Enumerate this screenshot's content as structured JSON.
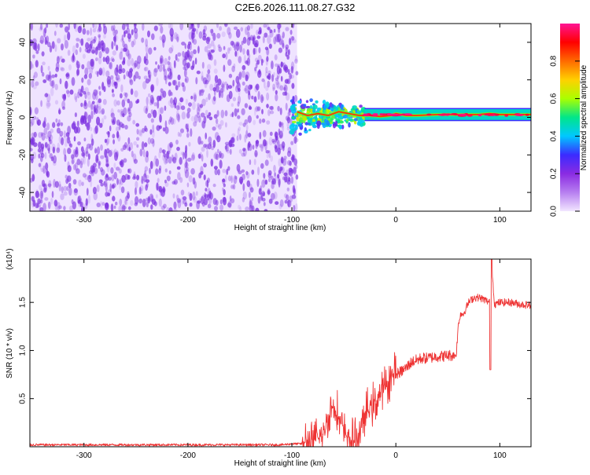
{
  "title": "C2E6.2026.111.08.27.G32",
  "colors": {
    "spectrogram_sparse": "#7b2fe0",
    "colorbar": [
      "#f2e6ff",
      "#b77ff0",
      "#8a2be2",
      "#3b2bff",
      "#00c8ff",
      "#00e68a",
      "#aaff00",
      "#ffd000",
      "#ff6a00",
      "#ff0000",
      "#ff1493"
    ],
    "snr_line": "#ee3333"
  },
  "chart_data": [
    {
      "type": "heatmap",
      "name": "spectrogram",
      "xlabel": "Height of straight line (km)",
      "ylabel": "Frequency (Hz)",
      "xlim": [
        -352,
        130
      ],
      "ylim": [
        -50,
        50
      ],
      "xticks": [
        -300,
        -200,
        -100,
        0,
        100
      ],
      "xtick_labels": [
        "-300",
        "-200",
        "-100",
        "0",
        "100"
      ],
      "yticks": [
        -40,
        -20,
        0,
        20,
        40
      ],
      "ytick_labels": [
        "-40",
        "-20",
        "0",
        "20",
        "40"
      ],
      "colorbar": {
        "label": "Normalized spectral amplitude",
        "range": [
          0,
          1
        ],
        "ticks": [
          0.0,
          0.2,
          0.4,
          0.6,
          0.8
        ],
        "tick_labels": [
          "0.0",
          "0.2",
          "0.4",
          "0.6",
          "0.8"
        ]
      },
      "regions": [
        {
          "x_range": [
            -352,
            -95
          ],
          "f_range": [
            -50,
            50
          ],
          "amplitude": 0.1,
          "pattern": "broadband noise"
        },
        {
          "x_range": [
            -100,
            -30
          ],
          "f_range": [
            -12,
            10
          ],
          "amplitude": 0.45,
          "pattern": "spread signal"
        },
        {
          "x_range": [
            -30,
            130
          ],
          "f_range": [
            -1,
            3
          ],
          "amplitude": 0.95,
          "pattern": "narrow line near 1 Hz"
        }
      ],
      "ridge": {
        "x": [
          -95,
          -85,
          -75,
          -65,
          -55,
          -45,
          -35,
          -25,
          -15,
          -5,
          0,
          10,
          20,
          40,
          60,
          80,
          90,
          100,
          120,
          130
        ],
        "freq": [
          3,
          1,
          2,
          1,
          3,
          2,
          1,
          1,
          0.5,
          1,
          2,
          1,
          1,
          1.5,
          1.5,
          1.5,
          2,
          1.5,
          1.5,
          1.5
        ]
      }
    },
    {
      "type": "line",
      "name": "snr",
      "xlabel": "Height of straight line (km)",
      "ylabel": "SNR (10 * v/v)",
      "multiplier": "(x10⁴)",
      "xlim": [
        -352,
        130
      ],
      "ylim": [
        0,
        1.95
      ],
      "xticks": [
        -300,
        -200,
        -100,
        0,
        100
      ],
      "xtick_labels": [
        "-300",
        "-200",
        "-100",
        "0",
        "100"
      ],
      "yticks": [
        0.5,
        1.0,
        1.5
      ],
      "ytick_labels": [
        "0.5",
        "1.0",
        "1.5"
      ],
      "series": [
        {
          "x": [
            -352,
            -300,
            -200,
            -110,
            -100,
            -90,
            -80,
            -70,
            -65,
            -60,
            -55,
            -50,
            -45,
            -40,
            -35,
            -30,
            -25,
            -20,
            -15,
            -10,
            -5,
            0,
            5,
            10,
            15,
            20,
            25,
            30,
            35,
            40,
            45,
            50,
            55,
            58,
            60,
            62,
            65,
            70,
            75,
            80,
            85,
            90,
            92,
            95,
            100,
            110,
            120,
            130
          ],
          "y": [
            0.02,
            0.02,
            0.02,
            0.02,
            0.03,
            0.03,
            0.05,
            0.12,
            0.3,
            0.45,
            0.3,
            0.15,
            0.08,
            0.05,
            0.15,
            0.3,
            0.42,
            0.45,
            0.55,
            0.62,
            0.72,
            0.75,
            0.78,
            0.82,
            0.88,
            0.9,
            0.92,
            0.92,
            0.93,
            0.94,
            0.94,
            0.95,
            0.95,
            0.95,
            1.25,
            1.38,
            1.38,
            1.5,
            1.55,
            1.55,
            1.53,
            1.5,
            1.9,
            1.48,
            1.5,
            1.5,
            1.48,
            1.47
          ]
        }
      ]
    }
  ]
}
